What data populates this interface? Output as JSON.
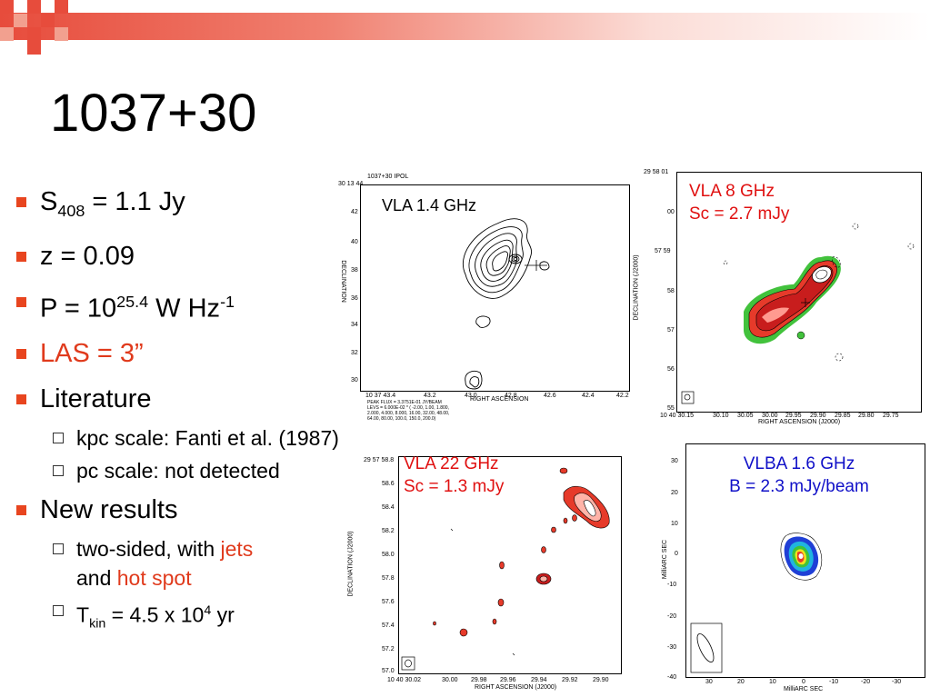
{
  "slide": {
    "title": "1037+30",
    "colors": {
      "accent": "#e8451f",
      "highlight": "#e03a1c",
      "label_blue": "#1010c8",
      "label_red": "#e01010"
    }
  },
  "bullets": {
    "s408": {
      "main": "S",
      "sub": "408",
      "rest": " = 1.1 Jy"
    },
    "z": "z = 0.09",
    "p": {
      "main": "P = 10",
      "sup": "25.4",
      "mid": " W Hz",
      "sup2": "-1"
    },
    "las": "LAS = 3”",
    "literature": "Literature",
    "kpc": "kpc scale: Fanti et al. (1987)",
    "pc": "pc scale: not detected",
    "new": "New results",
    "twosided": {
      "prefix": "two-sided, with ",
      "jets": "jets",
      "and": "and ",
      "hotspot": "hot spot"
    },
    "tkin": {
      "prefix": "T",
      "sub": "kin",
      "mid": " = 4.5 x 10",
      "sup": "4",
      "suffix": " yr"
    }
  },
  "panels": {
    "vla14": {
      "label": "VLA 1.4 GHz",
      "header": "1037+30     IPOL",
      "top_dec": "30 13 44",
      "y_ticks": [
        "42",
        "40",
        "38",
        "36",
        "34",
        "32",
        "30"
      ],
      "x_ticks": [
        "10 37 43.4",
        "43.2",
        "43.0",
        "42.8",
        "42.6",
        "42.4",
        "42.2"
      ],
      "xlabel": "RIGHT ASCENSION",
      "ylabel": "DECLINATION",
      "footer1": "PEAK FLUX = 3.3751E-01 JY/BEAM",
      "footer2": "LEVS = 6.000E-02 * ( -2.00, 1.00, 1.800,",
      "footer3": "2.000, 4.000, 8.000, 16.00, 32.00, 48.00,",
      "footer4": "64.00, 80.00, 100.0, 150.0, 200.0)"
    },
    "vla8": {
      "label_line1": "VLA 8 GHz",
      "label_line2": "Sc = 2.7 mJy",
      "y_ticks": [
        "29 58 01",
        "00",
        "57 59",
        "58",
        "57",
        "56",
        "55"
      ],
      "x_ticks": [
        "10 40 30.15",
        "30.10",
        "30.05",
        "30.00",
        "29.95",
        "29.90",
        "29.85",
        "29.80",
        "29.75"
      ],
      "xlabel": "RIGHT ASCENSION (J2000)",
      "ylabel": "DECLINATION (J2000)"
    },
    "vla22": {
      "label_line1": "VLA 22 GHz",
      "label_line2": "Sc = 1.3 mJy",
      "y_ticks": [
        "29 57 58.8",
        "58.6",
        "58.4",
        "58.2",
        "58.0",
        "57.8",
        "57.6",
        "57.4",
        "57.2",
        "57.0"
      ],
      "x_ticks": [
        "10 40 30.02",
        "30.00",
        "29.98",
        "29.96",
        "29.94",
        "29.92",
        "29.90"
      ],
      "xlabel": "RIGHT ASCENSION (J2000)",
      "ylabel": "DECLINATION (J2000)"
    },
    "vlba": {
      "label_line1": "VLBA 1.6 GHz",
      "label_line2": "B = 2.3 mJy/beam",
      "y_ticks": [
        "30",
        "20",
        "10",
        "0",
        "-10",
        "-20",
        "-30",
        "-40"
      ],
      "x_ticks": [
        "30",
        "20",
        "10",
        "0",
        "-10",
        "-20",
        "-30"
      ],
      "xlabel": "MilliARC SEC",
      "ylabel": "MilliARC SEC"
    }
  }
}
